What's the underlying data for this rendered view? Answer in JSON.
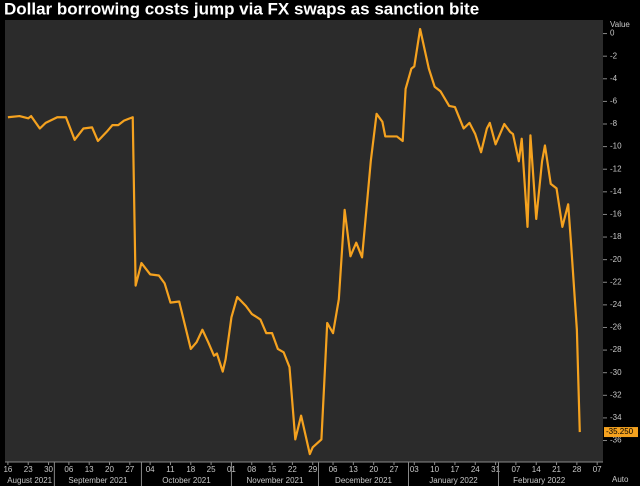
{
  "chart_data": {
    "type": "line",
    "title": "Dollar borrowing costs jump via FX swaps as sanction bite",
    "y_axis_label": "Value",
    "scale_mode": "Auto",
    "grid": false,
    "x": [
      "2021-08-16",
      "2021-08-20",
      "2021-08-23",
      "2021-08-24",
      "2021-08-27",
      "2021-08-29",
      "2021-09-02",
      "2021-09-05",
      "2021-09-08",
      "2021-09-11",
      "2021-09-14",
      "2021-09-16",
      "2021-09-19",
      "2021-09-21",
      "2021-09-23",
      "2021-09-25",
      "2021-09-28",
      "2021-09-29",
      "2021-10-01",
      "2021-10-04",
      "2021-10-07",
      "2021-10-09",
      "2021-10-11",
      "2021-10-14",
      "2021-10-18",
      "2021-10-20",
      "2021-10-22",
      "2021-10-24",
      "2021-10-26",
      "2021-10-27",
      "2021-10-29",
      "2021-10-30",
      "2021-11-01",
      "2021-11-03",
      "2021-11-06",
      "2021-11-08",
      "2021-11-11",
      "2021-11-13",
      "2021-11-15",
      "2021-11-17",
      "2021-11-19",
      "2021-11-21",
      "2021-11-23",
      "2021-11-25",
      "2021-11-28",
      "2021-11-29",
      "2021-12-02",
      "2021-12-03",
      "2021-12-04",
      "2021-12-06",
      "2021-12-08",
      "2021-12-10",
      "2021-12-12",
      "2021-12-14",
      "2021-12-16",
      "2021-12-19",
      "2021-12-21",
      "2021-12-23",
      "2021-12-24",
      "2021-12-28",
      "2021-12-30",
      "2021-12-31",
      "2022-01-02",
      "2022-01-03",
      "2022-01-05",
      "2022-01-08",
      "2022-01-10",
      "2022-01-12",
      "2022-01-15",
      "2022-01-17",
      "2022-01-20",
      "2022-01-22",
      "2022-01-24",
      "2022-01-26",
      "2022-01-28",
      "2022-01-29",
      "2022-01-31",
      "2022-02-03",
      "2022-02-05",
      "2022-02-06",
      "2022-02-08",
      "2022-02-09",
      "2022-02-11",
      "2022-02-12",
      "2022-02-14",
      "2022-02-16",
      "2022-02-17",
      "2022-02-19",
      "2022-02-21",
      "2022-02-23",
      "2022-02-25",
      "2022-02-26",
      "2022-02-28",
      "2022-03-01"
    ],
    "series": [
      {
        "color": "#f5a21f",
        "values": [
          -7.4,
          -7.3,
          -7.5,
          -7.3,
          -8.4,
          -7.9,
          -7.4,
          -7.4,
          -9.4,
          -8.4,
          -8.3,
          -9.5,
          -8.7,
          -8.1,
          -8.1,
          -7.7,
          -7.4,
          -22.3,
          -20.3,
          -21.3,
          -21.4,
          -22.1,
          -23.8,
          -23.7,
          -27.9,
          -27.3,
          -26.2,
          -27.3,
          -28.5,
          -28.3,
          -29.9,
          -28.8,
          -25.1,
          -23.3,
          -24.1,
          -24.8,
          -25.3,
          -26.5,
          -26.5,
          -27.9,
          -28.2,
          -29.5,
          -35.9,
          -33.8,
          -37.2,
          -36.6,
          -35.9,
          -30.8,
          -25.6,
          -26.5,
          -23.5,
          -15.6,
          -19.7,
          -18.5,
          -19.8,
          -11.3,
          -7.1,
          -7.8,
          -9.1,
          -9.1,
          -9.5,
          -4.9,
          -3.1,
          -2.9,
          0.4,
          -3.1,
          -4.7,
          -5.1,
          -6.4,
          -6.5,
          -8.4,
          -7.9,
          -8.9,
          -10.5,
          -8.4,
          -7.9,
          -9.8,
          -8.0,
          -8.7,
          -8.9,
          -11.3,
          -9.3,
          -17.1,
          -9.0,
          -16.4,
          -11.3,
          -9.9,
          -13.3,
          -13.7,
          -17.1,
          -15.1,
          -18.6,
          -26.2,
          -35.25
        ],
        "value_labels": [
          null,
          null,
          null,
          null,
          null,
          null,
          null,
          null,
          null,
          null,
          null,
          null,
          null,
          null,
          null,
          null,
          null,
          null,
          null,
          null,
          null,
          null,
          null,
          null,
          null,
          null,
          null,
          null,
          null,
          null,
          null,
          null,
          null,
          null,
          null,
          null,
          null,
          null,
          null,
          null,
          null,
          null,
          null,
          null,
          null,
          null,
          null,
          null,
          null,
          null,
          null,
          null,
          null,
          null,
          null,
          null,
          null,
          null,
          null,
          null,
          null,
          null,
          null,
          null,
          null,
          null,
          null,
          null,
          null,
          null,
          null,
          null,
          null,
          null,
          null,
          null,
          null,
          null,
          null,
          null,
          null,
          null,
          null,
          null,
          null,
          null,
          null,
          null,
          null,
          null,
          null,
          null,
          null,
          "-35.250"
        ]
      }
    ],
    "ylim": [
      -37.9,
      1.2
    ],
    "yticks": [
      0,
      -2,
      -4,
      -6,
      -8,
      -10,
      -12,
      -14,
      -16,
      -18,
      -20,
      -22,
      -24,
      -26,
      -28,
      -30,
      -32,
      -34,
      -36
    ],
    "xlim": [
      "2021-08-15",
      "2022-03-09"
    ],
    "xticks": [
      {
        "value": "2021-08-16",
        "label": "16"
      },
      {
        "value": "2021-08-23",
        "label": "23"
      },
      {
        "value": "2021-08-30",
        "label": "30"
      },
      {
        "value": "2021-09-06",
        "label": "06"
      },
      {
        "value": "2021-09-13",
        "label": "13"
      },
      {
        "value": "2021-09-20",
        "label": "20"
      },
      {
        "value": "2021-09-27",
        "label": "27"
      },
      {
        "value": "2021-10-04",
        "label": "04"
      },
      {
        "value": "2021-10-11",
        "label": "11"
      },
      {
        "value": "2021-10-18",
        "label": "18"
      },
      {
        "value": "2021-10-25",
        "label": "25"
      },
      {
        "value": "2021-11-01",
        "label": "01"
      },
      {
        "value": "2021-11-08",
        "label": "08"
      },
      {
        "value": "2021-11-15",
        "label": "15"
      },
      {
        "value": "2021-11-22",
        "label": "22"
      },
      {
        "value": "2021-11-29",
        "label": "29"
      },
      {
        "value": "2021-12-06",
        "label": "06"
      },
      {
        "value": "2021-12-13",
        "label": "13"
      },
      {
        "value": "2021-12-20",
        "label": "20"
      },
      {
        "value": "2021-12-27",
        "label": "27"
      },
      {
        "value": "2022-01-03",
        "label": "03"
      },
      {
        "value": "2022-01-10",
        "label": "10"
      },
      {
        "value": "2022-01-17",
        "label": "17"
      },
      {
        "value": "2022-01-24",
        "label": "24"
      },
      {
        "value": "2022-01-31",
        "label": "31"
      },
      {
        "value": "2022-02-07",
        "label": "07"
      },
      {
        "value": "2022-02-14",
        "label": "14"
      },
      {
        "value": "2022-02-21",
        "label": "21"
      },
      {
        "value": "2022-02-28",
        "label": "28"
      },
      {
        "value": "2022-03-07",
        "label": "07"
      }
    ],
    "month_labels": [
      {
        "value": "2021-08",
        "label": "August 2021"
      },
      {
        "value": "2021-09",
        "label": "September 2021"
      },
      {
        "value": "2021-10",
        "label": "October 2021"
      },
      {
        "value": "2021-11",
        "label": "November 2021"
      },
      {
        "value": "2021-12",
        "label": "December 2021"
      },
      {
        "value": "2022-01",
        "label": "January 2022"
      },
      {
        "value": "2022-02",
        "label": "February 2022"
      }
    ]
  }
}
